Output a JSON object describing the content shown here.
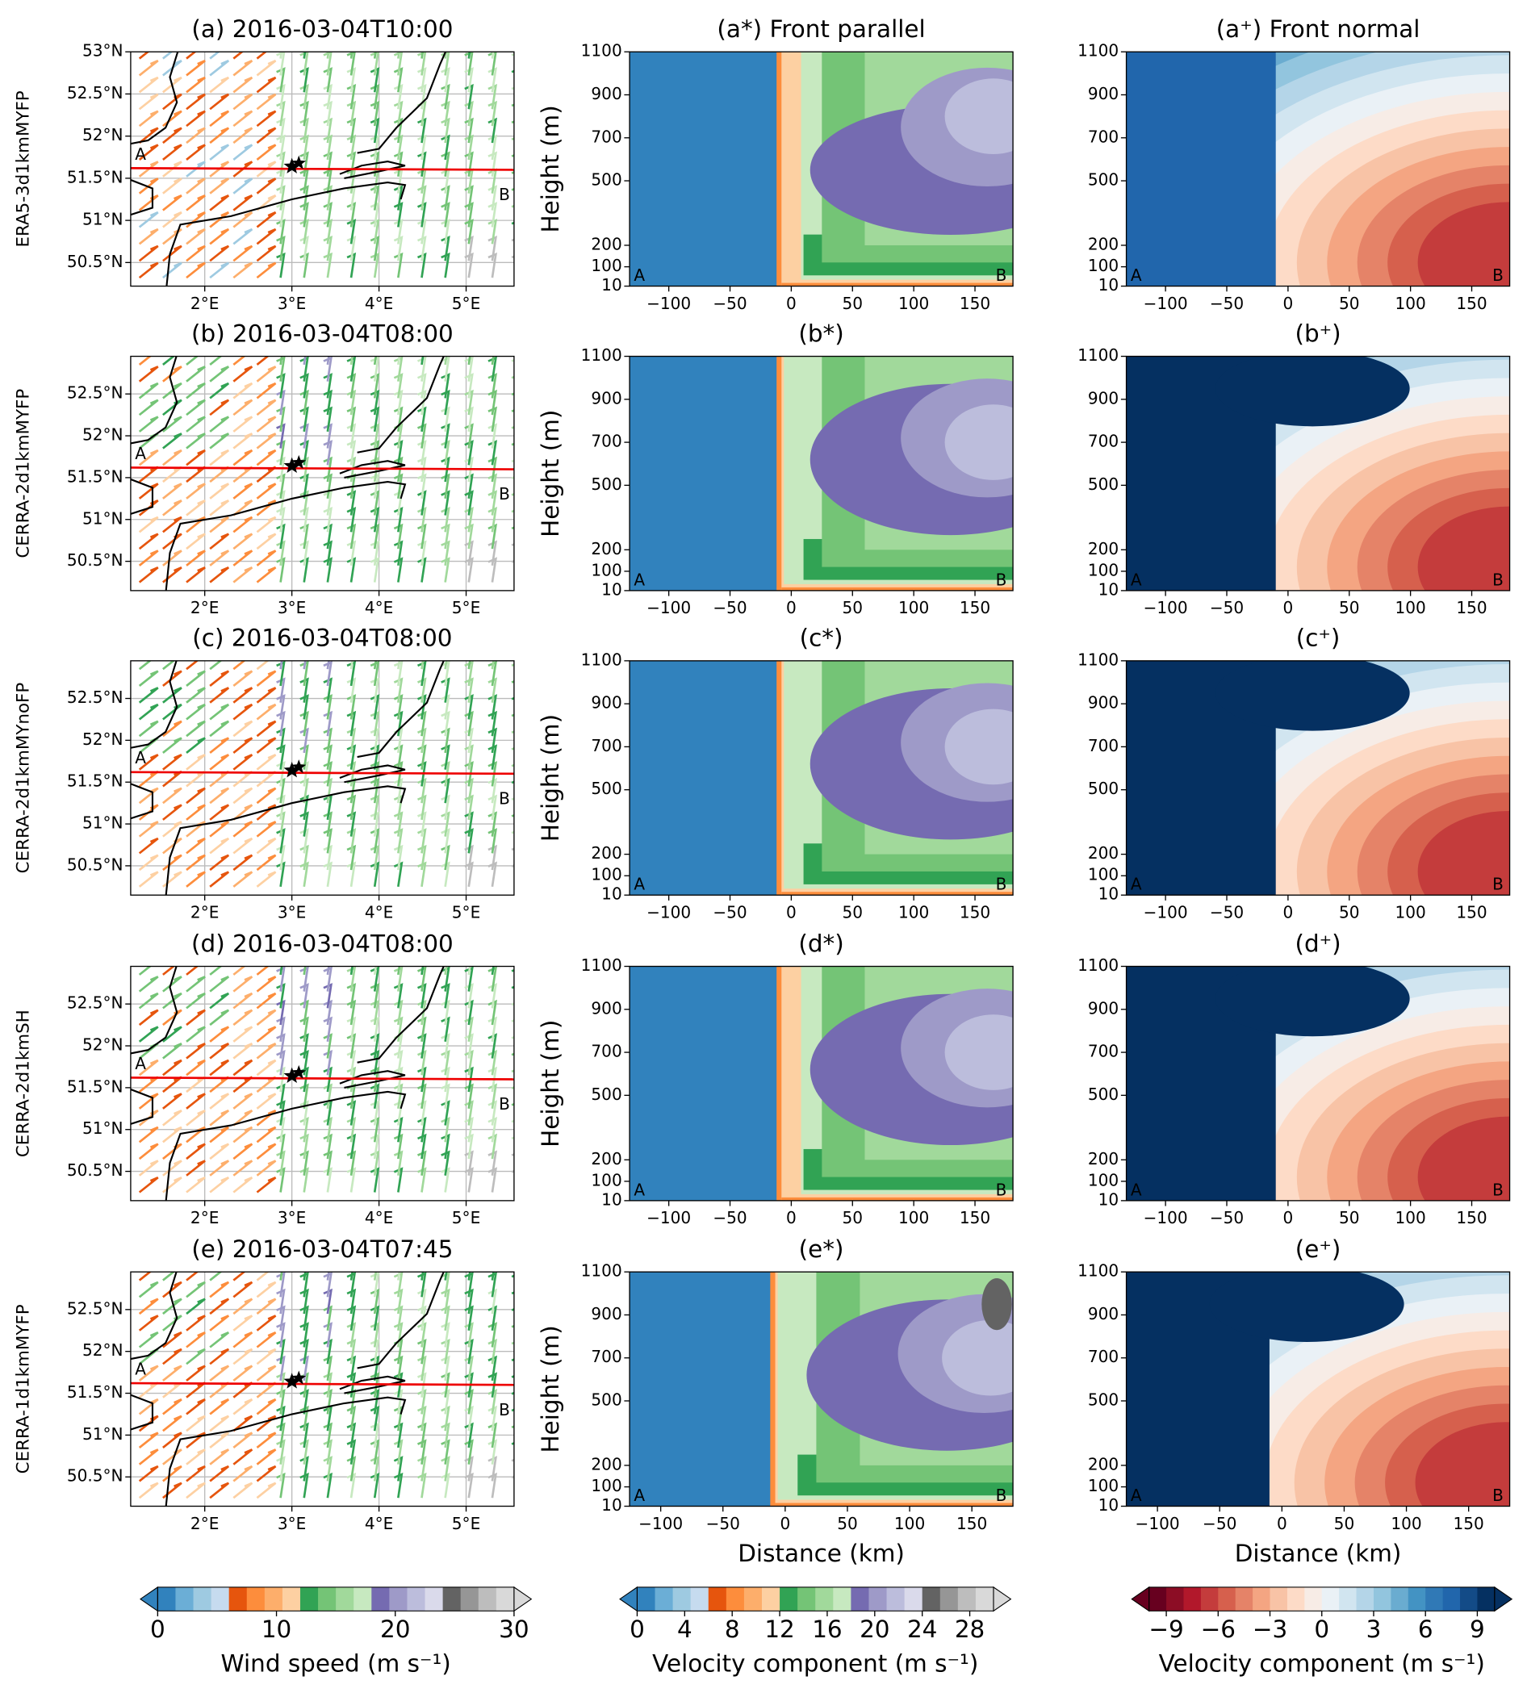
{
  "row_labels": [
    "ERA5-3d1kmMYFP",
    "CERRA-2d1kmMYFP",
    "CERRA-2d1kmMYnoFP",
    "CERRA-2d1kmSH",
    "CERRA-1d1kmMYFP"
  ],
  "section_labels": [
    "A",
    "B"
  ],
  "chart_data": [
    {
      "type": "map",
      "title": "(a) 2016-03-04T10:00",
      "xlim": [
        1.15,
        5.55
      ],
      "ylim": [
        50.22,
        53.0
      ],
      "xticks": [
        {
          "value": 2,
          "label": "2°E"
        },
        {
          "value": 3,
          "label": "3°E"
        },
        {
          "value": 4,
          "label": "4°E"
        },
        {
          "value": 5,
          "label": "5°E"
        }
      ],
      "yticks": [
        {
          "value": 50.5,
          "label": "50.5°N"
        },
        {
          "value": 51,
          "label": "51°N"
        },
        {
          "value": 51.5,
          "label": "51.5°N"
        },
        {
          "value": 52,
          "label": "52°N"
        },
        {
          "value": 52.5,
          "label": "52.5°N"
        },
        {
          "value": 53,
          "label": "53°N"
        }
      ],
      "grid": true
    },
    {
      "type": "contour",
      "title": "(a*) Front parallel",
      "ylabel": "Height (m)",
      "xlim": [
        -132,
        181
      ],
      "ylim": [
        10,
        1100
      ],
      "xticks": [
        {
          "value": -100,
          "label": "−100"
        },
        {
          "value": -50,
          "label": "−50"
        },
        0,
        50,
        100,
        150
      ],
      "yticks": [
        10,
        100,
        200,
        500,
        700,
        900,
        1100
      ],
      "colorbar": 1
    },
    {
      "type": "contour",
      "title": "(a⁺) Front normal",
      "xlim": [
        -132,
        181
      ],
      "ylim": [
        10,
        1100
      ],
      "xticks": [
        {
          "value": -100,
          "label": "−100"
        },
        {
          "value": -50,
          "label": "−50"
        },
        0,
        50,
        100,
        150
      ],
      "yticks": [
        10,
        100,
        200,
        500,
        700,
        900,
        1100
      ],
      "colorbar": 2
    },
    {
      "type": "map",
      "title": "(b) 2016-03-04T08:00",
      "xlim": [
        1.15,
        5.55
      ],
      "ylim": [
        50.15,
        52.95
      ],
      "xticks": [
        {
          "value": 2,
          "label": "2°E"
        },
        {
          "value": 3,
          "label": "3°E"
        },
        {
          "value": 4,
          "label": "4°E"
        },
        {
          "value": 5,
          "label": "5°E"
        }
      ],
      "yticks": [
        {
          "value": 50.5,
          "label": "50.5°N"
        },
        {
          "value": 51,
          "label": "51°N"
        },
        {
          "value": 51.5,
          "label": "51.5°N"
        },
        {
          "value": 52,
          "label": "52°N"
        },
        {
          "value": 52.5,
          "label": "52.5°N"
        }
      ],
      "grid": true
    },
    {
      "type": "contour",
      "title": "(b*)",
      "ylabel": "Height (m)",
      "xlim": [
        -132,
        181
      ],
      "ylim": [
        10,
        1100
      ],
      "xticks": [
        {
          "value": -100,
          "label": "−100"
        },
        {
          "value": -50,
          "label": "−50"
        },
        0,
        50,
        100,
        150
      ],
      "yticks": [
        10,
        100,
        200,
        500,
        700,
        900,
        1100
      ],
      "colorbar": 1
    },
    {
      "type": "contour",
      "title": "(b⁺)",
      "xlim": [
        -132,
        181
      ],
      "ylim": [
        10,
        1100
      ],
      "xticks": [
        {
          "value": -100,
          "label": "−100"
        },
        {
          "value": -50,
          "label": "−50"
        },
        0,
        50,
        100,
        150
      ],
      "yticks": [
        10,
        100,
        200,
        500,
        700,
        900,
        1100
      ],
      "colorbar": 2
    },
    {
      "type": "map",
      "title": "(c) 2016-03-04T08:00",
      "xlim": [
        1.15,
        5.55
      ],
      "ylim": [
        50.15,
        52.95
      ],
      "xticks": [
        {
          "value": 2,
          "label": "2°E"
        },
        {
          "value": 3,
          "label": "3°E"
        },
        {
          "value": 4,
          "label": "4°E"
        },
        {
          "value": 5,
          "label": "5°E"
        }
      ],
      "yticks": [
        {
          "value": 50.5,
          "label": "50.5°N"
        },
        {
          "value": 51,
          "label": "51°N"
        },
        {
          "value": 51.5,
          "label": "51.5°N"
        },
        {
          "value": 52,
          "label": "52°N"
        },
        {
          "value": 52.5,
          "label": "52.5°N"
        }
      ],
      "grid": true
    },
    {
      "type": "contour",
      "title": "(c*)",
      "ylabel": "Height (m)",
      "xlim": [
        -132,
        181
      ],
      "ylim": [
        10,
        1100
      ],
      "xticks": [
        {
          "value": -100,
          "label": "−100"
        },
        {
          "value": -50,
          "label": "−50"
        },
        0,
        50,
        100,
        150
      ],
      "yticks": [
        10,
        100,
        200,
        500,
        700,
        900,
        1100
      ],
      "colorbar": 1
    },
    {
      "type": "contour",
      "title": "(c⁺)",
      "xlim": [
        -132,
        181
      ],
      "ylim": [
        10,
        1100
      ],
      "xticks": [
        {
          "value": -100,
          "label": "−100"
        },
        {
          "value": -50,
          "label": "−50"
        },
        0,
        50,
        100,
        150
      ],
      "yticks": [
        10,
        100,
        200,
        500,
        700,
        900,
        1100
      ],
      "colorbar": 2
    },
    {
      "type": "map",
      "title": "(d) 2016-03-04T08:00",
      "xlim": [
        1.15,
        5.55
      ],
      "ylim": [
        50.15,
        52.95
      ],
      "xticks": [
        {
          "value": 2,
          "label": "2°E"
        },
        {
          "value": 3,
          "label": "3°E"
        },
        {
          "value": 4,
          "label": "4°E"
        },
        {
          "value": 5,
          "label": "5°E"
        }
      ],
      "yticks": [
        {
          "value": 50.5,
          "label": "50.5°N"
        },
        {
          "value": 51,
          "label": "51°N"
        },
        {
          "value": 51.5,
          "label": "51.5°N"
        },
        {
          "value": 52,
          "label": "52°N"
        },
        {
          "value": 52.5,
          "label": "52.5°N"
        }
      ],
      "grid": true
    },
    {
      "type": "contour",
      "title": "(d*)",
      "ylabel": "Height (m)",
      "xlim": [
        -132,
        181
      ],
      "ylim": [
        10,
        1100
      ],
      "xticks": [
        {
          "value": -100,
          "label": "−100"
        },
        {
          "value": -50,
          "label": "−50"
        },
        0,
        50,
        100,
        150
      ],
      "yticks": [
        10,
        100,
        200,
        500,
        700,
        900,
        1100
      ],
      "colorbar": 1
    },
    {
      "type": "contour",
      "title": "(d⁺)",
      "xlim": [
        -132,
        181
      ],
      "ylim": [
        10,
        1100
      ],
      "xticks": [
        {
          "value": -100,
          "label": "−100"
        },
        {
          "value": -50,
          "label": "−50"
        },
        0,
        50,
        100,
        150
      ],
      "yticks": [
        10,
        100,
        200,
        500,
        700,
        900,
        1100
      ],
      "colorbar": 2
    },
    {
      "type": "map",
      "title": "(e) 2016-03-04T07:45",
      "xlim": [
        1.15,
        5.55
      ],
      "ylim": [
        50.15,
        52.95
      ],
      "xticks": [
        {
          "value": 2,
          "label": "2°E"
        },
        {
          "value": 3,
          "label": "3°E"
        },
        {
          "value": 4,
          "label": "4°E"
        },
        {
          "value": 5,
          "label": "5°E"
        }
      ],
      "yticks": [
        {
          "value": 50.5,
          "label": "50.5°N"
        },
        {
          "value": 51,
          "label": "51°N"
        },
        {
          "value": 51.5,
          "label": "51.5°N"
        },
        {
          "value": 52,
          "label": "52°N"
        },
        {
          "value": 52.5,
          "label": "52.5°N"
        }
      ],
      "grid": true
    },
    {
      "type": "contour",
      "title": "(e*)",
      "ylabel": "Height (m)",
      "xlabel": "Distance (km)",
      "xlim": [
        -125,
        183
      ],
      "ylim": [
        10,
        1100
      ],
      "xticks": [
        {
          "value": -100,
          "label": "−100"
        },
        {
          "value": -50,
          "label": "−50"
        },
        0,
        50,
        100,
        150
      ],
      "yticks": [
        10,
        100,
        200,
        500,
        700,
        900,
        1100
      ],
      "colorbar": 1
    },
    {
      "type": "contour",
      "title": "(e⁺)",
      "xlabel": "Distance (km)",
      "xlim": [
        -125,
        183
      ],
      "ylim": [
        10,
        1100
      ],
      "xticks": [
        {
          "value": -100,
          "label": "−100"
        },
        {
          "value": -50,
          "label": "−50"
        },
        0,
        50,
        100,
        150
      ],
      "yticks": [
        10,
        100,
        200,
        500,
        700,
        900,
        1100
      ],
      "colorbar": 2
    }
  ],
  "colorbars": [
    {
      "label": "Wind speed (m s⁻¹)",
      "lim": [
        0,
        30
      ],
      "ticks": [
        0,
        10,
        20,
        30
      ],
      "colors": [
        "#3182bd",
        "#6baed6",
        "#9ecae1",
        "#c6dbef",
        "#e6550d",
        "#fd8d3c",
        "#fdae6b",
        "#fdd0a2",
        "#31a354",
        "#74c476",
        "#a1d99b",
        "#c7e9c0",
        "#756bb1",
        "#9e9ac8",
        "#bcbddc",
        "#dadaeb",
        "#636363",
        "#969696",
        "#bdbdbd",
        "#d9d9d9"
      ]
    },
    {
      "label": "Velocity component (m s⁻¹)",
      "lim": [
        0,
        30
      ],
      "ticks": [
        0,
        4,
        8,
        12,
        16,
        20,
        24,
        28
      ],
      "colors": [
        "#3182bd",
        "#6baed6",
        "#9ecae1",
        "#c6dbef",
        "#e6550d",
        "#fd8d3c",
        "#fdae6b",
        "#fdd0a2",
        "#31a354",
        "#74c476",
        "#a1d99b",
        "#c7e9c0",
        "#756bb1",
        "#9e9ac8",
        "#bcbddc",
        "#dadaeb",
        "#636363",
        "#969696",
        "#bdbdbd",
        "#d9d9d9"
      ]
    },
    {
      "label": "Velocity component (m s⁻¹)",
      "lim": [
        -10,
        10
      ],
      "ticks": [
        {
          "value": -9,
          "label": "−9"
        },
        {
          "value": -6,
          "label": "−6"
        },
        {
          "value": -3,
          "label": "−3"
        },
        0,
        3,
        6,
        9
      ],
      "colors": [
        "#67001f",
        "#8c0d25",
        "#b2182b",
        "#c43c3c",
        "#d6604d",
        "#e58368",
        "#f4a582",
        "#f8c3a6",
        "#fddbc7",
        "#f7ece6",
        "#eaf1f6",
        "#d1e5f0",
        "#b4d5e8",
        "#92c5de",
        "#6aacd0",
        "#4393c3",
        "#3079b6",
        "#2166ac",
        "#134b87",
        "#053061"
      ]
    }
  ]
}
